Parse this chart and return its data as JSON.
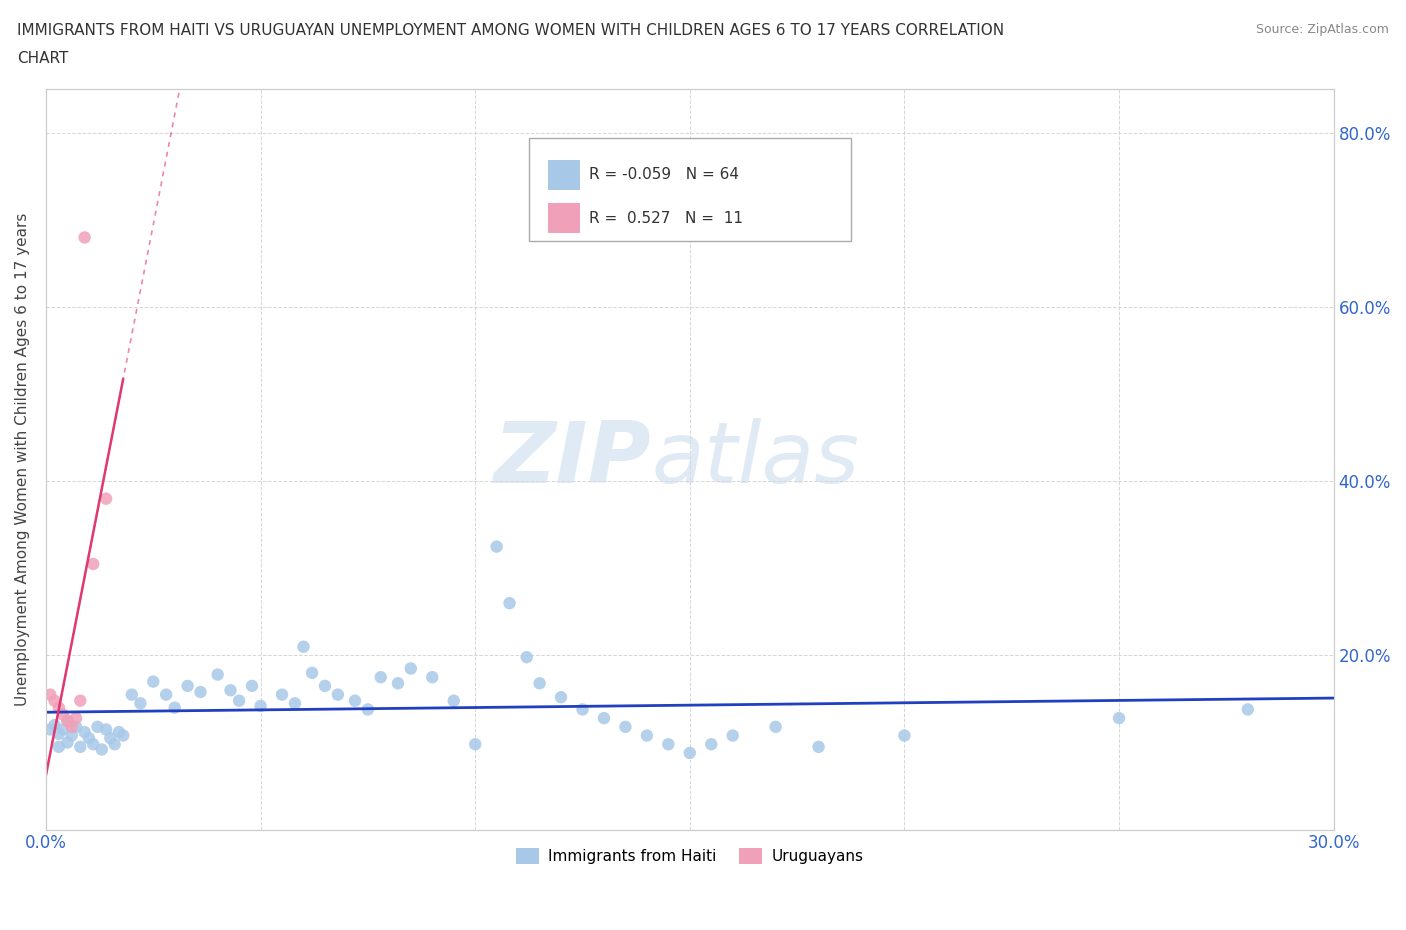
{
  "title_line1": "IMMIGRANTS FROM HAITI VS URUGUAYAN UNEMPLOYMENT AMONG WOMEN WITH CHILDREN AGES 6 TO 17 YEARS CORRELATION",
  "title_line2": "CHART",
  "source": "Source: ZipAtlas.com",
  "ylabel": "Unemployment Among Women with Children Ages 6 to 17 years",
  "xlim": [
    0.0,
    0.3
  ],
  "ylim": [
    0.0,
    0.85
  ],
  "x_ticks": [
    0.0,
    0.05,
    0.1,
    0.15,
    0.2,
    0.25,
    0.3
  ],
  "y_ticks": [
    0.0,
    0.2,
    0.4,
    0.6,
    0.8
  ],
  "haiti_color": "#a8c8e8",
  "uruguay_color": "#f0a0b8",
  "haiti_line_color": "#2040c0",
  "uruguay_line_color": "#e03870",
  "legend_haiti_label": "Immigrants from Haiti",
  "legend_uruguay_label": "Uruguayans",
  "haiti_R": -0.059,
  "haiti_N": 64,
  "uruguay_R": 0.527,
  "uruguay_N": 11,
  "haiti_scatter_x": [
    0.001,
    0.002,
    0.003,
    0.003,
    0.004,
    0.005,
    0.005,
    0.006,
    0.007,
    0.008,
    0.009,
    0.01,
    0.011,
    0.012,
    0.013,
    0.014,
    0.015,
    0.016,
    0.017,
    0.018,
    0.02,
    0.022,
    0.025,
    0.028,
    0.03,
    0.033,
    0.036,
    0.04,
    0.043,
    0.045,
    0.048,
    0.05,
    0.055,
    0.058,
    0.06,
    0.062,
    0.065,
    0.068,
    0.072,
    0.075,
    0.078,
    0.082,
    0.085,
    0.09,
    0.095,
    0.1,
    0.105,
    0.108,
    0.112,
    0.115,
    0.12,
    0.125,
    0.13,
    0.135,
    0.14,
    0.145,
    0.15,
    0.155,
    0.16,
    0.17,
    0.18,
    0.2,
    0.25,
    0.28
  ],
  "haiti_scatter_y": [
    0.115,
    0.12,
    0.095,
    0.11,
    0.115,
    0.1,
    0.125,
    0.108,
    0.118,
    0.095,
    0.112,
    0.105,
    0.098,
    0.118,
    0.092,
    0.115,
    0.105,
    0.098,
    0.112,
    0.108,
    0.155,
    0.145,
    0.17,
    0.155,
    0.14,
    0.165,
    0.158,
    0.178,
    0.16,
    0.148,
    0.165,
    0.142,
    0.155,
    0.145,
    0.21,
    0.18,
    0.165,
    0.155,
    0.148,
    0.138,
    0.175,
    0.168,
    0.185,
    0.175,
    0.148,
    0.098,
    0.325,
    0.26,
    0.198,
    0.168,
    0.152,
    0.138,
    0.128,
    0.118,
    0.108,
    0.098,
    0.088,
    0.098,
    0.108,
    0.118,
    0.095,
    0.108,
    0.128,
    0.138
  ],
  "uruguay_scatter_x": [
    0.001,
    0.002,
    0.003,
    0.004,
    0.005,
    0.006,
    0.007,
    0.008,
    0.009,
    0.011,
    0.014
  ],
  "uruguay_scatter_y": [
    0.155,
    0.148,
    0.14,
    0.132,
    0.125,
    0.118,
    0.128,
    0.148,
    0.68,
    0.305,
    0.38
  ],
  "watermark_zip": "ZIP",
  "watermark_atlas": "atlas",
  "background_color": "#ffffff",
  "grid_color": "#cccccc"
}
